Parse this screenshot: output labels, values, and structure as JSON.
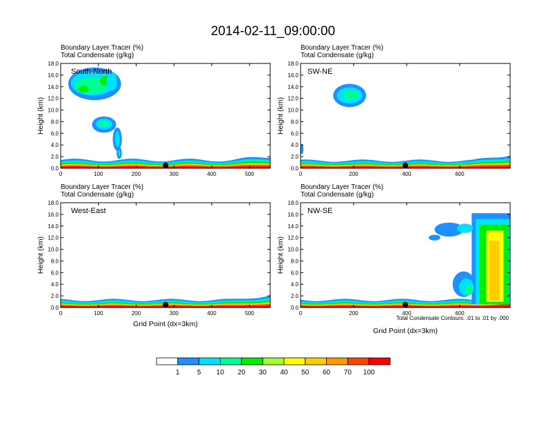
{
  "title": "2014-02-11_09:00:00",
  "chart_data": {
    "type": "heatmap",
    "panel_headers": [
      "Boundary Layer Tracer   (%)",
      "Total Condensate   (g/kg)"
    ],
    "ylabel": "Height (km)",
    "xlabel": "Grid Point (dx=3km)",
    "contour_note": "Total Condensate Contours: .01 to .01 by .000",
    "colorbar": {
      "colors": [
        "#ffffff",
        "#1e90ff",
        "#00e0ff",
        "#00ff90",
        "#00ee00",
        "#a0ff30",
        "#ffff00",
        "#ffcc00",
        "#ff9900",
        "#ff4400",
        "#ff0000"
      ],
      "labels": [
        "1",
        "5",
        "10",
        "20",
        "30",
        "40",
        "50",
        "60",
        "70",
        "100"
      ]
    },
    "panels": [
      {
        "id": "south-north",
        "label": "South-North",
        "xlim": [
          0,
          555
        ],
        "ylim": [
          0,
          18
        ],
        "xticks": [
          0,
          100,
          200,
          300,
          400,
          500
        ],
        "yticks": [
          "0.0",
          "2.0",
          "4.0",
          "6.0",
          "8.0",
          "10.0",
          "12.0",
          "14.0",
          "16.0",
          "18.0"
        ],
        "marker_x": 278,
        "plumes": [
          {
            "type": "ellipse",
            "cx": 90,
            "cy": 14.5,
            "rx": 70,
            "ry": 2.8,
            "level": 1
          },
          {
            "type": "ellipse",
            "cx": 85,
            "cy": 14.6,
            "rx": 58,
            "ry": 2.1,
            "level": 2
          },
          {
            "type": "ellipse",
            "cx": 80,
            "cy": 14.2,
            "rx": 42,
            "ry": 1.4,
            "level": 3
          },
          {
            "type": "ellipse",
            "cx": 125,
            "cy": 15.0,
            "rx": 22,
            "ry": 0.9,
            "level": 4
          },
          {
            "type": "ellipse",
            "cx": 60,
            "cy": 13.6,
            "rx": 14,
            "ry": 0.6,
            "level": 4
          },
          {
            "type": "ellipse",
            "cx": 135,
            "cy": 14.9,
            "rx": 14,
            "ry": 1.6,
            "level": 2
          },
          {
            "type": "ellipse",
            "cx": 115,
            "cy": 7.5,
            "rx": 32,
            "ry": 1.4,
            "level": 1
          },
          {
            "type": "ellipse",
            "cx": 115,
            "cy": 7.6,
            "rx": 22,
            "ry": 0.9,
            "level": 2
          },
          {
            "type": "ellipse",
            "cx": 115,
            "cy": 7.7,
            "rx": 12,
            "ry": 0.5,
            "level": 3
          },
          {
            "type": "ellipse",
            "cx": 150,
            "cy": 5.0,
            "rx": 12,
            "ry": 2.0,
            "level": 1
          },
          {
            "type": "ellipse",
            "cx": 150,
            "cy": 5.0,
            "rx": 6,
            "ry": 1.4,
            "level": 2
          },
          {
            "type": "ellipse",
            "cx": 155,
            "cy": 2.6,
            "rx": 7,
            "ry": 1.0,
            "level": 1
          },
          {
            "type": "ellipse",
            "cx": 155,
            "cy": 2.6,
            "rx": 3,
            "ry": 0.6,
            "level": 2
          }
        ],
        "pbl": {
          "base": 1.4,
          "amp": 0.25,
          "right_rise": 0.6
        }
      },
      {
        "id": "sw-ne",
        "label": "SW-NE",
        "xlim": [
          0,
          790
        ],
        "ylim": [
          0,
          18
        ],
        "xticks": [
          0,
          200,
          400,
          600
        ],
        "yticks": [
          "0.0",
          "2.0",
          "4.0",
          "6.0",
          "8.0",
          "10.0",
          "12.0",
          "14.0",
          "16.0",
          "18.0"
        ],
        "marker_x": 395,
        "plumes": [
          {
            "type": "ellipse",
            "cx": 185,
            "cy": 12.5,
            "rx": 62,
            "ry": 2.0,
            "level": 1
          },
          {
            "type": "ellipse",
            "cx": 185,
            "cy": 12.5,
            "rx": 48,
            "ry": 1.4,
            "level": 2
          },
          {
            "type": "ellipse",
            "cx": 190,
            "cy": 12.6,
            "rx": 28,
            "ry": 0.8,
            "level": 3
          },
          {
            "type": "ellipse",
            "cx": 5,
            "cy": 3.3,
            "rx": 6,
            "ry": 0.9,
            "level": 1
          }
        ],
        "pbl": {
          "base": 1.3,
          "amp": 0.2,
          "right_rise": 1.0
        }
      },
      {
        "id": "west-east",
        "label": "West-East",
        "xlim": [
          0,
          555
        ],
        "ylim": [
          0,
          18
        ],
        "xticks": [
          0,
          100,
          200,
          300,
          400,
          500
        ],
        "yticks": [
          "0.0",
          "2.0",
          "4.0",
          "6.0",
          "8.0",
          "10.0",
          "12.0",
          "14.0",
          "16.0",
          "18.0"
        ],
        "marker_x": 278,
        "plumes": [],
        "pbl": {
          "base": 1.3,
          "amp": 0.2,
          "right_rise": 0.8
        }
      },
      {
        "id": "nw-se",
        "label": "NW-SE",
        "xlim": [
          0,
          790
        ],
        "ylim": [
          0,
          18
        ],
        "xticks": [
          0,
          200,
          400,
          600
        ],
        "yticks": [
          "0.0",
          "2.0",
          "4.0",
          "6.0",
          "8.0",
          "10.0",
          "12.0",
          "14.0",
          "16.0",
          "18.0"
        ],
        "marker_x": 395,
        "plumes": [
          {
            "type": "rect",
            "x0": 645,
            "x1": 790,
            "y0": 0.6,
            "y1": 16.2,
            "level": 1
          },
          {
            "type": "rect",
            "x0": 660,
            "x1": 790,
            "y0": 0.6,
            "y1": 15.2,
            "level": 2
          },
          {
            "type": "rect",
            "x0": 675,
            "x1": 785,
            "y0": 0.6,
            "y1": 14.2,
            "level": 4
          },
          {
            "type": "rect",
            "x0": 700,
            "x1": 765,
            "y0": 1.0,
            "y1": 13.2,
            "level": 6
          },
          {
            "type": "rect",
            "x0": 712,
            "x1": 750,
            "y0": 1.2,
            "y1": 11.5,
            "level": 7
          },
          {
            "type": "ellipse",
            "cx": 560,
            "cy": 13.4,
            "rx": 55,
            "ry": 1.2,
            "level": 1
          },
          {
            "type": "ellipse",
            "cx": 620,
            "cy": 13.6,
            "rx": 30,
            "ry": 0.8,
            "level": 2
          },
          {
            "type": "ellipse",
            "cx": 505,
            "cy": 12.0,
            "rx": 22,
            "ry": 0.5,
            "level": 1
          },
          {
            "type": "ellipse",
            "cx": 615,
            "cy": 4.0,
            "rx": 42,
            "ry": 2.2,
            "level": 1
          },
          {
            "type": "ellipse",
            "cx": 625,
            "cy": 3.5,
            "rx": 28,
            "ry": 1.5,
            "level": 2
          },
          {
            "type": "ellipse",
            "cx": 635,
            "cy": 3.0,
            "rx": 14,
            "ry": 0.9,
            "level": 3
          }
        ],
        "pbl": {
          "base": 1.3,
          "amp": 0.2,
          "right_rise": 0.8
        }
      }
    ]
  }
}
